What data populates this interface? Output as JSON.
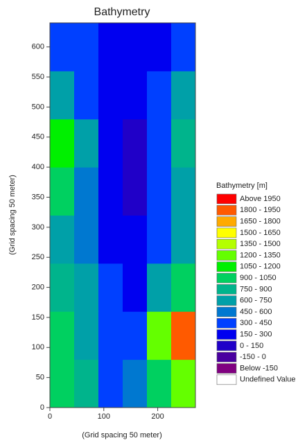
{
  "chart_data": {
    "type": "heatmap",
    "title": "Bathymetry",
    "x_label": "(Grid spacing 50 meter)",
    "y_label": "(Grid spacing 50 meter)",
    "xlim": [
      0,
      270
    ],
    "ylim": [
      0,
      640
    ],
    "xticks": [
      0,
      100,
      200
    ],
    "yticks": [
      0,
      50,
      100,
      150,
      200,
      250,
      300,
      350,
      400,
      450,
      500,
      550,
      600
    ],
    "x_edges": [
      0,
      45,
      90,
      135,
      180,
      225,
      270
    ],
    "y_edges": [
      0,
      80,
      160,
      240,
      320,
      400,
      480,
      560,
      640
    ],
    "z": [
      [
        1000,
        800,
        300,
        500,
        1000,
        1200
      ],
      [
        900,
        700,
        300,
        400,
        1300,
        1800
      ],
      [
        800,
        600,
        350,
        200,
        600,
        900
      ],
      [
        700,
        500,
        250,
        150,
        350,
        600
      ],
      [
        900,
        500,
        200,
        100,
        350,
        700
      ],
      [
        1100,
        600,
        250,
        100,
        300,
        800
      ],
      [
        600,
        400,
        250,
        150,
        300,
        700
      ],
      [
        400,
        350,
        250,
        150,
        250,
        350
      ]
    ],
    "levels": [
      1950,
      1800,
      1650,
      1500,
      1350,
      1200,
      1050,
      900,
      750,
      600,
      450,
      300,
      150,
      0,
      -150
    ],
    "legend": {
      "title": "Bathymetry [m]",
      "labels": [
        "Above 1950",
        "1800 - 1950",
        "1650 - 1800",
        "1500 - 1650",
        "1350 - 1500",
        "1200 - 1350",
        "1050 - 1200",
        "900 - 1050",
        "750 - 900",
        "600 - 750",
        "450 - 600",
        "300 - 450",
        "150 - 300",
        "0 - 150",
        "-150 - 0",
        "Below -150",
        "Undefined Value"
      ],
      "colors": [
        "#ff0000",
        "#ff5a00",
        "#ffaa00",
        "#ffff00",
        "#b4ff00",
        "#64ff00",
        "#00f000",
        "#00d060",
        "#00b48c",
        "#00a0a8",
        "#0078d0",
        "#0040ff",
        "#0000f0",
        "#2000c8",
        "#4a00a0",
        "#800080",
        "#ffffff"
      ]
    }
  }
}
